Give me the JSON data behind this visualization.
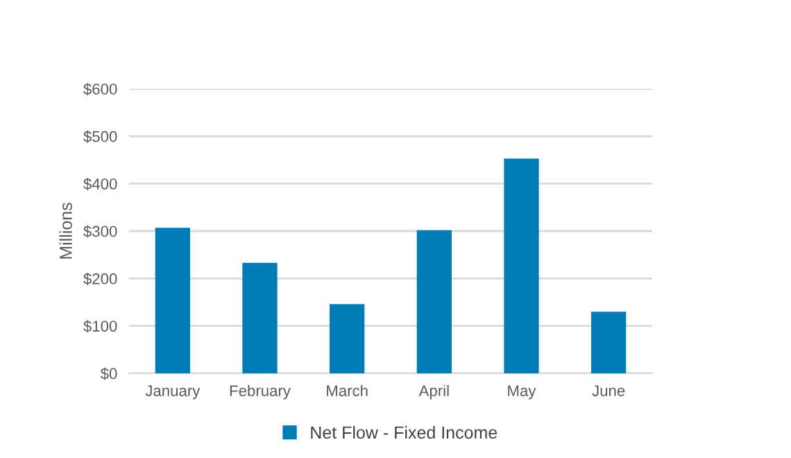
{
  "chart_data": {
    "type": "bar",
    "ylabel": "Millions",
    "categories": [
      "January",
      "February",
      "March",
      "April",
      "May",
      "June"
    ],
    "series": [
      {
        "name": "Net Flow - Fixed Income",
        "color": "#007cb7",
        "values": [
          307,
          233,
          146,
          302,
          453,
          130
        ]
      }
    ],
    "ylim": [
      0,
      600
    ],
    "yticks": [
      {
        "value": 0,
        "label": "$0"
      },
      {
        "value": 100,
        "label": "$100"
      },
      {
        "value": 200,
        "label": "$200"
      },
      {
        "value": 300,
        "label": "$300"
      },
      {
        "value": 400,
        "label": "$400"
      },
      {
        "value": 500,
        "label": "$500"
      },
      {
        "value": 600,
        "label": "$600"
      }
    ],
    "grid": "y",
    "legend": "bottom"
  }
}
